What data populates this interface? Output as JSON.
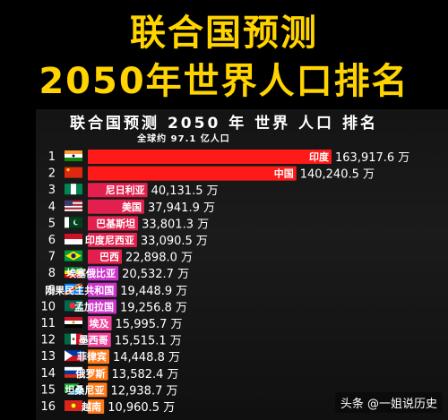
{
  "header": {
    "line1": "联合国预测",
    "line2": "2050年世界人口排名"
  },
  "chart_data": {
    "type": "bar",
    "title": "联合国预测 2050 年 世界 人口 排名",
    "subtitle": "全球约 97.1 亿人口",
    "unit": "万",
    "ranks": [
      1,
      2,
      3,
      4,
      5,
      6,
      7,
      8,
      9,
      10,
      11,
      12,
      13,
      14,
      15,
      16
    ],
    "categories": [
      "印度",
      "中国",
      "尼日利亚",
      "美国",
      "巴基斯坦",
      "印度尼西亚",
      "巴西",
      "埃塞俄比亚",
      "刚果民主共和国",
      "孟加拉国",
      "埃及",
      "墨西哥",
      "菲律宾",
      "俄罗斯",
      "坦桑尼亚",
      "越南"
    ],
    "values": [
      163917.6,
      140240.5,
      40131.5,
      37941.9,
      33801.3,
      33090.5,
      22898.0,
      20532.7,
      19448.9,
      19256.8,
      15995.7,
      15515.1,
      14448.8,
      13582.4,
      12938.7,
      10960.5
    ],
    "value_labels": [
      "163,917.6",
      "140,240.5",
      "40,131.5",
      "37,941.9",
      "33,801.3",
      "33,090.5",
      "22,898.0",
      "20,532.7",
      "19,448.9",
      "19,256.8",
      "15,995.7",
      "15,515.1",
      "14,448.8",
      "13,582.4",
      "12,938.7",
      "10,960.5"
    ],
    "bar_colors": [
      "#ff1a1a",
      "#ff1a1a",
      "#e3204d",
      "#e3204d",
      "#e3204d",
      "#e3204d",
      "#e3204d",
      "#cc33cc",
      "#cc33cc",
      "#cc33cc",
      "#f0409a",
      "#f0409a",
      "#ff7a1a",
      "#ff7a1a",
      "#ff7a1a",
      "#ff7a1a"
    ],
    "flag_icons": [
      "india-flag-icon",
      "china-flag-icon",
      "nigeria-flag-icon",
      "usa-flag-icon",
      "pakistan-flag-icon",
      "indonesia-flag-icon",
      "brazil-flag-icon",
      "ethiopia-flag-icon",
      "drc-flag-icon",
      "bangladesh-flag-icon",
      "egypt-flag-icon",
      "mexico-flag-icon",
      "philippines-flag-icon",
      "russia-flag-icon",
      "tanzania-flag-icon",
      "vietnam-flag-icon"
    ]
  },
  "watermark": "头条 @一姐说历史"
}
